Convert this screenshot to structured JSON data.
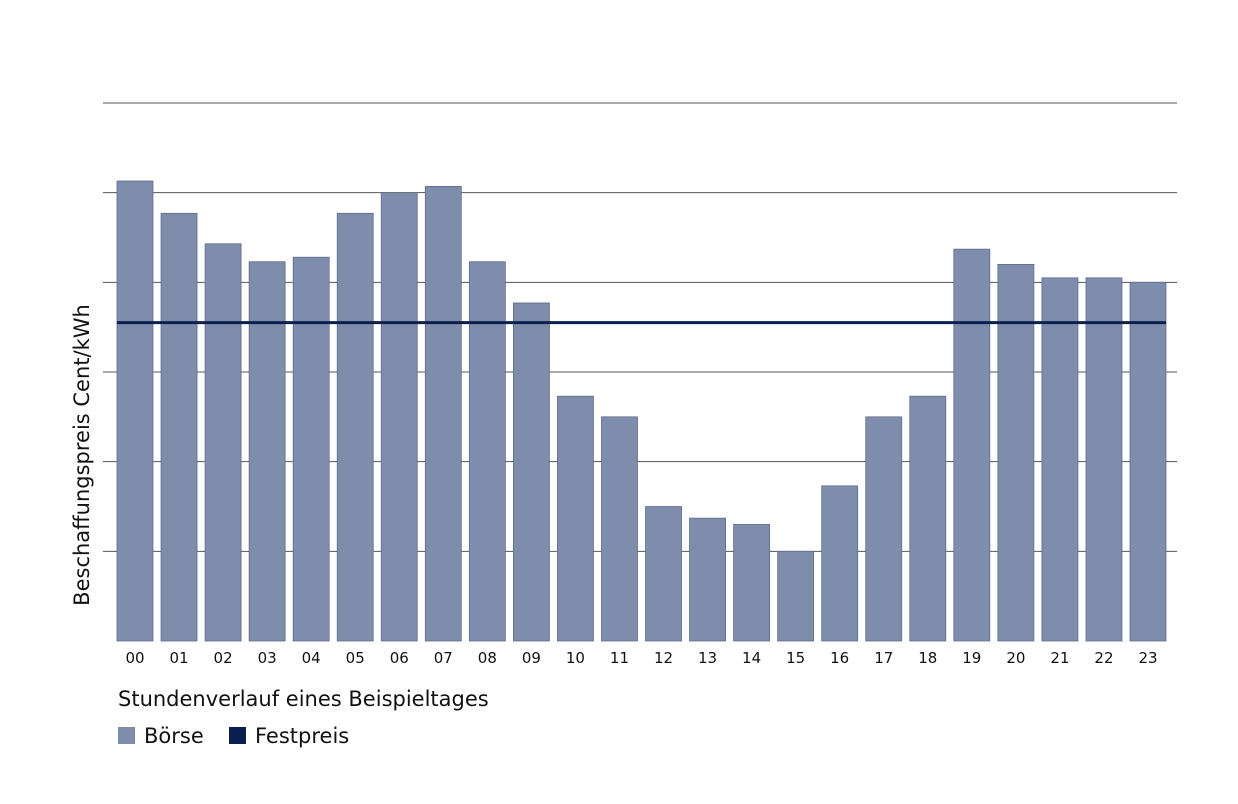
{
  "chart_data": {
    "type": "bar",
    "title": "",
    "ylabel": "Beschaffungspreis Cent/kWh",
    "xlabel": "Stundenverlauf eines Beispieltages",
    "categories": [
      "00",
      "01",
      "02",
      "03",
      "04",
      "05",
      "06",
      "07",
      "08",
      "09",
      "10",
      "11",
      "12",
      "13",
      "14",
      "15",
      "16",
      "17",
      "18",
      "19",
      "20",
      "21",
      "22",
      "23"
    ],
    "series": [
      {
        "name": "Börse",
        "color": "#7e8dab",
        "values": [
          5.13,
          4.77,
          4.43,
          4.23,
          4.28,
          4.77,
          5.0,
          5.07,
          4.23,
          3.77,
          2.73,
          2.5,
          1.5,
          1.37,
          1.3,
          1.0,
          1.73,
          2.5,
          2.73,
          4.37,
          4.2,
          4.05,
          4.05,
          4.0
        ]
      }
    ],
    "reference_lines": [
      {
        "name": "Festpreis",
        "value": 3.55,
        "color": "#0c1f4e"
      }
    ],
    "ylim": [
      0,
      6
    ],
    "yticks_labeled": false,
    "grid": true,
    "legend": {
      "position": "bottom-left",
      "items": [
        {
          "label": "Börse",
          "color": "#7e8dab"
        },
        {
          "label": "Festpreis",
          "color": "#0c1f4e"
        }
      ]
    }
  }
}
